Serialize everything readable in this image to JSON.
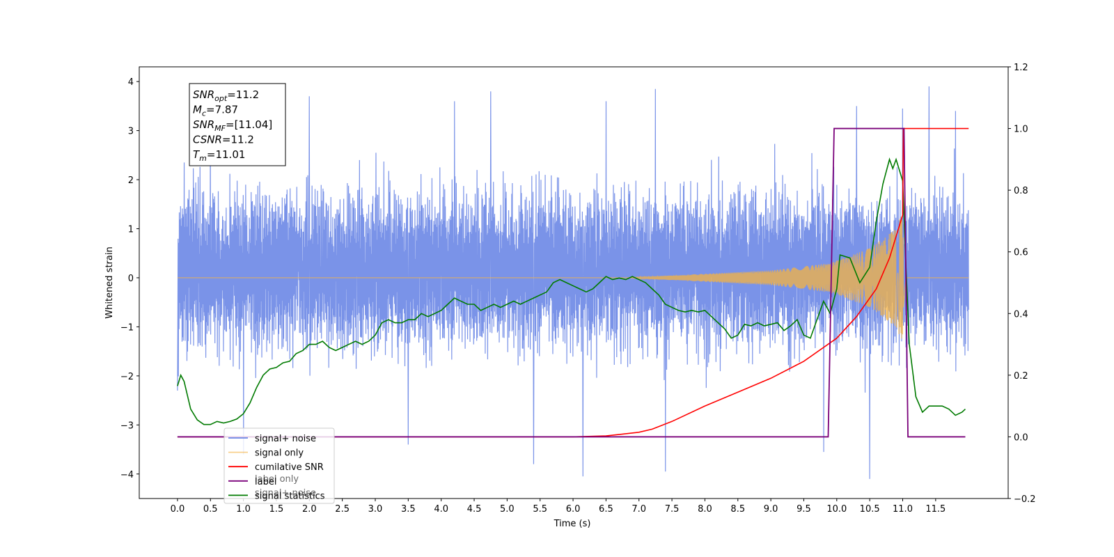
{
  "chart_data": {
    "type": "line",
    "xlabel": "Time (s)",
    "ylabel": "Whitened strain",
    "xlim": [
      -0.58,
      12.6
    ],
    "ylim": [
      -4.5,
      4.3
    ],
    "y2lim": [
      -0.2,
      1.2
    ],
    "x_ticks": [
      "0.0",
      "0.5",
      "1.0",
      "1.5",
      "2.0",
      "2.5",
      "3.0",
      "3.5",
      "4.0",
      "4.5",
      "5.0",
      "5.5",
      "6.0",
      "6.5",
      "7.0",
      "7.5",
      "8.0",
      "8.5",
      "9.0",
      "9.5",
      "10.0",
      "10.5",
      "11.0",
      "11.5"
    ],
    "y_ticks": [
      "4",
      "3",
      "2",
      "1",
      "0",
      "−1",
      "−2",
      "−3",
      "−4"
    ],
    "y2_ticks": [
      "1.2",
      "1.0",
      "0.8",
      "0.6",
      "0.4",
      "0.2",
      "0.0",
      "−0.2"
    ],
    "annotation": {
      "lines": [
        {
          "base": "SNR",
          "sub": "opt",
          "rest": "=11.2"
        },
        {
          "base": "M",
          "sub": "c",
          "rest": "=7.87"
        },
        {
          "base": "SNR",
          "sub": "MF",
          "rest": "=[11.04]"
        },
        {
          "base": "CSNR",
          "sub": "",
          "rest": "=11.2"
        },
        {
          "base": "T",
          "sub": "m",
          "rest": "=11.01"
        }
      ]
    },
    "legend": {
      "placement": "lower-left",
      "entries": [
        {
          "label": "signal+ noise",
          "color": "#6b87e6"
        },
        {
          "label": "signal only",
          "color": "#f5b342"
        },
        {
          "label": "cumilative SNR",
          "color": "#ff0000"
        },
        {
          "label": "label",
          "color": "#7a007a"
        },
        {
          "label": "signal statistics",
          "color": "#007a00"
        }
      ],
      "hidden_under_legend": [
        "label only",
        "signal+ noise"
      ]
    },
    "series": [
      {
        "name": "signal+ noise",
        "axis": "left",
        "color": "#6b87e6",
        "kind": "noise",
        "x_range": [
          0.0,
          12.0
        ],
        "envelope_typical": [
          -1.9,
          2.3
        ],
        "peak_points": [
          [
            0.0,
            -2.3
          ],
          [
            0.1,
            2.35
          ],
          [
            0.5,
            3.1
          ],
          [
            1.0,
            -3.6
          ],
          [
            2.0,
            3.7
          ],
          [
            3.5,
            -3.4
          ],
          [
            4.2,
            3.6
          ],
          [
            4.75,
            3.8
          ],
          [
            5.4,
            -3.8
          ],
          [
            6.15,
            -4.05
          ],
          [
            6.5,
            3.6
          ],
          [
            7.25,
            3.85
          ],
          [
            7.4,
            -3.95
          ],
          [
            9.8,
            -3.55
          ],
          [
            10.3,
            3.5
          ],
          [
            10.5,
            -4.1
          ],
          [
            11.0,
            3.45
          ],
          [
            11.4,
            3.9
          ],
          [
            11.8,
            3.4
          ]
        ]
      },
      {
        "name": "signal only",
        "axis": "left",
        "color": "#f5b342",
        "kind": "chirp",
        "x_range": [
          0.0,
          12.0
        ],
        "onset": 6.8,
        "merger": 11.01,
        "amplitude_points": [
          [
            6.8,
            0.0
          ],
          [
            8.0,
            0.08
          ],
          [
            9.0,
            0.15
          ],
          [
            9.9,
            0.3
          ],
          [
            10.5,
            0.6
          ],
          [
            10.9,
            1.0
          ],
          [
            11.01,
            1.4
          ],
          [
            11.05,
            0.0
          ]
        ]
      },
      {
        "name": "cumilative SNR",
        "axis": "right",
        "color": "#ff0000",
        "points": [
          [
            0.0,
            0.0
          ],
          [
            5.0,
            0.0
          ],
          [
            6.0,
            0.0
          ],
          [
            6.5,
            0.003
          ],
          [
            7.0,
            0.015
          ],
          [
            7.2,
            0.025
          ],
          [
            7.5,
            0.05
          ],
          [
            8.0,
            0.1
          ],
          [
            8.5,
            0.145
          ],
          [
            9.0,
            0.19
          ],
          [
            9.5,
            0.245
          ],
          [
            10.0,
            0.32
          ],
          [
            10.3,
            0.39
          ],
          [
            10.6,
            0.48
          ],
          [
            10.8,
            0.58
          ],
          [
            11.0,
            0.72
          ],
          [
            11.01,
            1.0
          ],
          [
            12.0,
            1.0
          ]
        ]
      },
      {
        "name": "label",
        "axis": "right",
        "color": "#7a007a",
        "points": [
          [
            0.0,
            0.0
          ],
          [
            9.87,
            0.0
          ],
          [
            9.96,
            1.0
          ],
          [
            11.02,
            1.0
          ],
          [
            11.08,
            0.0
          ],
          [
            11.95,
            0.0
          ]
        ]
      },
      {
        "name": "signal statistics",
        "axis": "right",
        "color": "#007a00",
        "points": [
          [
            0.0,
            0.165
          ],
          [
            0.05,
            0.2
          ],
          [
            0.1,
            0.18
          ],
          [
            0.2,
            0.09
          ],
          [
            0.3,
            0.055
          ],
          [
            0.4,
            0.04
          ],
          [
            0.5,
            0.04
          ],
          [
            0.6,
            0.05
          ],
          [
            0.7,
            0.045
          ],
          [
            0.8,
            0.05
          ],
          [
            0.9,
            0.058
          ],
          [
            1.0,
            0.075
          ],
          [
            1.1,
            0.11
          ],
          [
            1.2,
            0.16
          ],
          [
            1.3,
            0.2
          ],
          [
            1.4,
            0.22
          ],
          [
            1.5,
            0.225
          ],
          [
            1.6,
            0.24
          ],
          [
            1.7,
            0.245
          ],
          [
            1.8,
            0.27
          ],
          [
            1.9,
            0.28
          ],
          [
            2.0,
            0.3
          ],
          [
            2.1,
            0.3
          ],
          [
            2.2,
            0.31
          ],
          [
            2.3,
            0.29
          ],
          [
            2.4,
            0.28
          ],
          [
            2.5,
            0.29
          ],
          [
            2.6,
            0.3
          ],
          [
            2.7,
            0.31
          ],
          [
            2.8,
            0.3
          ],
          [
            2.9,
            0.31
          ],
          [
            3.0,
            0.33
          ],
          [
            3.1,
            0.37
          ],
          [
            3.2,
            0.38
          ],
          [
            3.3,
            0.37
          ],
          [
            3.4,
            0.37
          ],
          [
            3.5,
            0.38
          ],
          [
            3.6,
            0.38
          ],
          [
            3.7,
            0.4
          ],
          [
            3.8,
            0.39
          ],
          [
            3.9,
            0.4
          ],
          [
            4.0,
            0.41
          ],
          [
            4.1,
            0.43
          ],
          [
            4.2,
            0.45
          ],
          [
            4.3,
            0.44
          ],
          [
            4.4,
            0.43
          ],
          [
            4.5,
            0.43
          ],
          [
            4.6,
            0.41
          ],
          [
            4.7,
            0.42
          ],
          [
            4.8,
            0.43
          ],
          [
            4.9,
            0.42
          ],
          [
            5.0,
            0.43
          ],
          [
            5.1,
            0.44
          ],
          [
            5.2,
            0.43
          ],
          [
            5.3,
            0.44
          ],
          [
            5.4,
            0.45
          ],
          [
            5.5,
            0.46
          ],
          [
            5.6,
            0.47
          ],
          [
            5.7,
            0.5
          ],
          [
            5.8,
            0.51
          ],
          [
            5.9,
            0.5
          ],
          [
            6.0,
            0.49
          ],
          [
            6.1,
            0.48
          ],
          [
            6.2,
            0.47
          ],
          [
            6.3,
            0.48
          ],
          [
            6.4,
            0.5
          ],
          [
            6.5,
            0.52
          ],
          [
            6.6,
            0.51
          ],
          [
            6.7,
            0.515
          ],
          [
            6.8,
            0.51
          ],
          [
            6.9,
            0.52
          ],
          [
            7.0,
            0.51
          ],
          [
            7.1,
            0.5
          ],
          [
            7.2,
            0.48
          ],
          [
            7.3,
            0.46
          ],
          [
            7.4,
            0.43
          ],
          [
            7.5,
            0.42
          ],
          [
            7.6,
            0.41
          ],
          [
            7.7,
            0.405
          ],
          [
            7.8,
            0.41
          ],
          [
            7.9,
            0.405
          ],
          [
            8.0,
            0.41
          ],
          [
            8.1,
            0.39
          ],
          [
            8.2,
            0.37
          ],
          [
            8.3,
            0.35
          ],
          [
            8.4,
            0.32
          ],
          [
            8.5,
            0.33
          ],
          [
            8.6,
            0.365
          ],
          [
            8.7,
            0.36
          ],
          [
            8.8,
            0.37
          ],
          [
            8.9,
            0.36
          ],
          [
            9.0,
            0.365
          ],
          [
            9.1,
            0.37
          ],
          [
            9.2,
            0.345
          ],
          [
            9.3,
            0.36
          ],
          [
            9.4,
            0.38
          ],
          [
            9.5,
            0.33
          ],
          [
            9.6,
            0.32
          ],
          [
            9.7,
            0.38
          ],
          [
            9.8,
            0.44
          ],
          [
            9.9,
            0.4
          ],
          [
            10.0,
            0.48
          ],
          [
            10.05,
            0.59
          ],
          [
            10.2,
            0.58
          ],
          [
            10.35,
            0.5
          ],
          [
            10.5,
            0.55
          ],
          [
            10.6,
            0.7
          ],
          [
            10.7,
            0.82
          ],
          [
            10.8,
            0.9
          ],
          [
            10.85,
            0.87
          ],
          [
            10.9,
            0.9
          ],
          [
            11.0,
            0.83
          ],
          [
            11.05,
            0.55
          ],
          [
            11.1,
            0.3
          ],
          [
            11.2,
            0.13
          ],
          [
            11.3,
            0.08
          ],
          [
            11.4,
            0.1
          ],
          [
            11.5,
            0.1
          ],
          [
            11.6,
            0.1
          ],
          [
            11.7,
            0.09
          ],
          [
            11.8,
            0.07
          ],
          [
            11.9,
            0.08
          ],
          [
            11.95,
            0.09
          ]
        ]
      }
    ]
  }
}
